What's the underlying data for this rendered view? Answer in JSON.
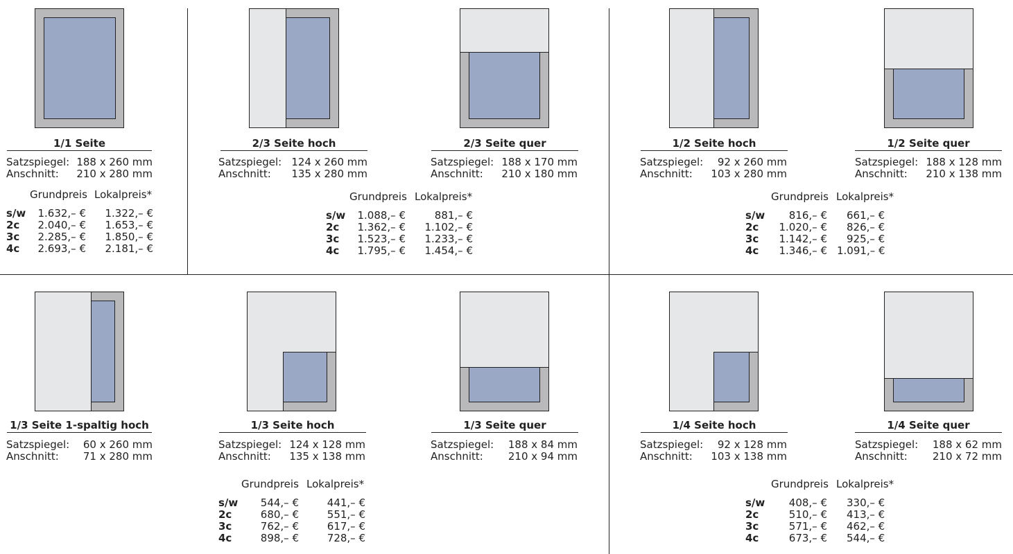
{
  "labels": {
    "satz": "Satzspiegel:",
    "anschnitt": "Anschnitt:",
    "grundpreis": "Grundpreis",
    "lokalpreis": "Lokalpreis*"
  },
  "colors": {
    "paper": "#e6e7e9",
    "bleed_frame": "#b9b9bc",
    "type_area": "#9aa8c6",
    "rules": "#222222"
  },
  "formats": {
    "f11": {
      "title": "1/1 Seite",
      "satz": "188 x 260 mm",
      "anschnitt": "210 x 280 mm"
    },
    "f23h": {
      "title": "2/3 Seite hoch",
      "satz": "124 x 260 mm",
      "anschnitt": "135 x 280 mm"
    },
    "f23q": {
      "title": "2/3 Seite quer",
      "satz": "188 x 170 mm",
      "anschnitt": "210 x 180 mm"
    },
    "f12h": {
      "title": "1/2 Seite hoch",
      "satz": "92 x 260 mm",
      "anschnitt": "103 x 280 mm"
    },
    "f12q": {
      "title": "1/2 Seite quer",
      "satz": "188 x 128 mm",
      "anschnitt": "210 x 138 mm"
    },
    "f13s": {
      "title": "1/3 Seite 1-spaltig hoch",
      "satz": "60 x 260 mm",
      "anschnitt": "71 x 280 mm"
    },
    "f13h": {
      "title": "1/3 Seite hoch",
      "satz": "124 x 128 mm",
      "anschnitt": "135 x 138 mm"
    },
    "f13q": {
      "title": "1/3 Seite quer",
      "satz": "188 x 84 mm",
      "anschnitt": "210 x 94 mm"
    },
    "f14h": {
      "title": "1/4 Seite hoch",
      "satz": "92 x 128 mm",
      "anschnitt": "103 x 138 mm"
    },
    "f14q": {
      "title": "1/4 Seite quer",
      "satz": "188 x 62 mm",
      "anschnitt": "210 x 72 mm"
    }
  },
  "prices": {
    "p11": [
      {
        "code": "s/w",
        "grund": "1.632,– €",
        "lokal": "1.322,– €"
      },
      {
        "code": "2c",
        "grund": "2.040,– €",
        "lokal": "1.653,– €"
      },
      {
        "code": "3c",
        "grund": "2.285,– €",
        "lokal": "1.850,– €"
      },
      {
        "code": "4c",
        "grund": "2.693,– €",
        "lokal": "2.181,– €"
      }
    ],
    "p23": [
      {
        "code": "s/w",
        "grund": "1.088,– €",
        "lokal": "881,– €"
      },
      {
        "code": "2c",
        "grund": "1.362,– €",
        "lokal": "1.102,– €"
      },
      {
        "code": "3c",
        "grund": "1.523,– €",
        "lokal": "1.233,– €"
      },
      {
        "code": "4c",
        "grund": "1.795,– €",
        "lokal": "1.454,– €"
      }
    ],
    "p12": [
      {
        "code": "s/w",
        "grund": "816,– €",
        "lokal": "661,– €"
      },
      {
        "code": "2c",
        "grund": "1.020,– €",
        "lokal": "826,– €"
      },
      {
        "code": "3c",
        "grund": "1.142,– €",
        "lokal": "925,– €"
      },
      {
        "code": "4c",
        "grund": "1.346,– €",
        "lokal": "1.091,– €"
      }
    ],
    "p13": [
      {
        "code": "s/w",
        "grund": "544,– €",
        "lokal": "441,– €"
      },
      {
        "code": "2c",
        "grund": "680,– €",
        "lokal": "551,– €"
      },
      {
        "code": "3c",
        "grund": "762,– €",
        "lokal": "617,– €"
      },
      {
        "code": "4c",
        "grund": "898,– €",
        "lokal": "728,– €"
      }
    ],
    "p14": [
      {
        "code": "s/w",
        "grund": "408,– €",
        "lokal": "330,– €"
      },
      {
        "code": "2c",
        "grund": "510,– €",
        "lokal": "413,– €"
      },
      {
        "code": "3c",
        "grund": "571,– €",
        "lokal": "462,– €"
      },
      {
        "code": "4c",
        "grund": "673,– €",
        "lokal": "544,– €"
      }
    ]
  }
}
